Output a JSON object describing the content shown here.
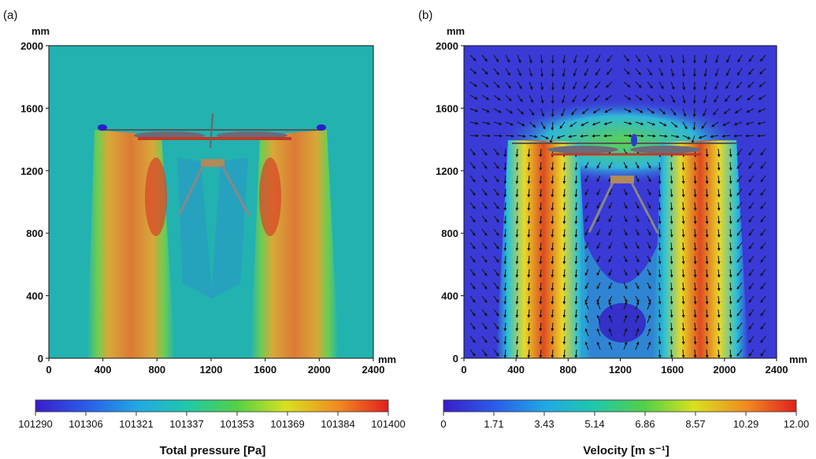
{
  "chart_data": [
    {
      "type": "heatmap",
      "panel_label": "(a)",
      "x_unit": "mm",
      "y_unit": "mm",
      "xlim": [
        0,
        2400
      ],
      "ylim": [
        0,
        2000
      ],
      "x_ticks": [
        "0",
        "400",
        "800",
        "1200",
        "1600",
        "2000",
        "2400"
      ],
      "y_ticks": [
        "0",
        "400",
        "800",
        "1200",
        "1600",
        "2000"
      ],
      "colorbar": {
        "label": "Total pressure [Pa]",
        "min": 101290,
        "max": 101400,
        "ticks": [
          "101290",
          "101306",
          "101321",
          "101337",
          "101353",
          "101369",
          "101384",
          "101400"
        ]
      },
      "vectors": false
    },
    {
      "type": "heatmap",
      "panel_label": "(b)",
      "x_unit": "mm",
      "y_unit": "mm",
      "xlim": [
        0,
        2400
      ],
      "ylim": [
        0,
        2000
      ],
      "x_ticks": [
        "0",
        "400",
        "800",
        "1200",
        "1600",
        "2000",
        "2400"
      ],
      "y_ticks": [
        "0",
        "400",
        "800",
        "1200",
        "1600",
        "2000"
      ],
      "colorbar": {
        "label": "Velocity [m s⁻¹]",
        "min": 0,
        "max": 12,
        "ticks": [
          "0",
          "1.71",
          "3.43",
          "5.14",
          "6.86",
          "8.57",
          "10.29",
          "12.00"
        ]
      },
      "vectors": true
    }
  ],
  "colors": {
    "pressure_background": "#22b2b0",
    "velocity_background": "#3a3ad6",
    "jet_core": "#e0401e",
    "colormap": [
      "#3a20c8",
      "#2060e8",
      "#20b0e0",
      "#20c8a0",
      "#60d040",
      "#e8e020",
      "#f08020",
      "#e02020"
    ]
  }
}
